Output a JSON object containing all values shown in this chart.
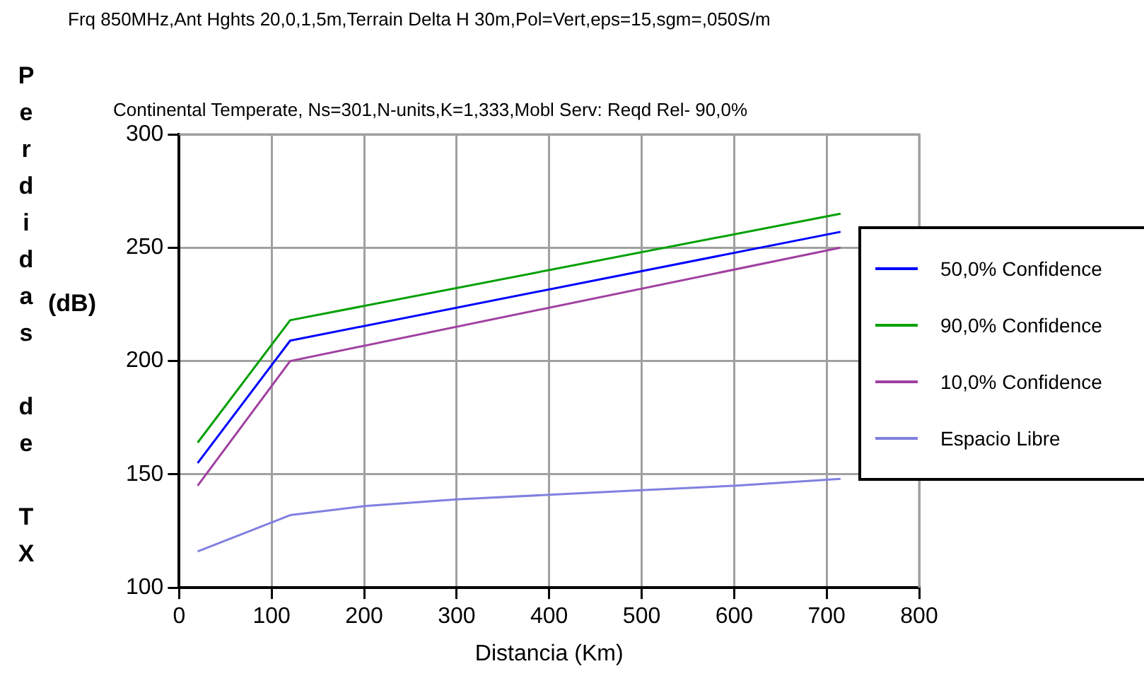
{
  "chart_data": {
    "type": "line",
    "title": "Frq 850MHz,Ant Hghts 20,0,1,5m,Terrain Delta H 30m,Pol=Vert,eps=15,sgm=,050S/m",
    "subtitle": "Continental Temperate, Ns=301,N-units,K=1,333,Mobl Serv: Reqd Rel- 90,0%",
    "xlabel": "Distancia (Km)",
    "ylabel": "Perdidas de TX",
    "annotations": [
      "(dB)"
    ],
    "xlim": [
      0,
      800
    ],
    "xticks": [
      0,
      100,
      200,
      300,
      400,
      500,
      600,
      700,
      800
    ],
    "ylim": [
      100,
      300
    ],
    "yticks": [
      100,
      150,
      200,
      250,
      300
    ],
    "grid": true,
    "legend": "right",
    "marker": "none",
    "line_style": "solid",
    "series": [
      {
        "name": "50,0% Confidence",
        "color": "#0000ff",
        "x": [
          20,
          120,
          715
        ],
        "values": [
          155,
          209,
          257
        ]
      },
      {
        "name": "90,0% Confidence",
        "color": "#00a000",
        "x": [
          20,
          120,
          715
        ],
        "values": [
          164,
          218,
          265
        ]
      },
      {
        "name": "10,0% Confidence",
        "color": "#a040a0",
        "x": [
          20,
          120,
          715
        ],
        "values": [
          145,
          200,
          250
        ]
      },
      {
        "name": "Espacio Libre",
        "color": "#8080e0",
        "x": [
          20,
          120,
          200,
          300,
          400,
          500,
          600,
          715
        ],
        "values": [
          116,
          132,
          136,
          139,
          141,
          143,
          145,
          148
        ]
      }
    ]
  }
}
